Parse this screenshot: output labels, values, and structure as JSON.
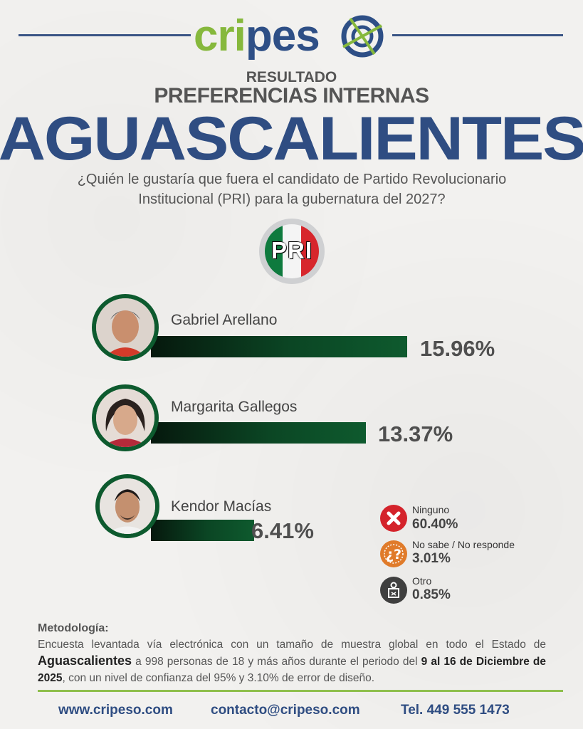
{
  "brand": {
    "logo_a": "cri",
    "logo_b": "pes",
    "logo_c": "o"
  },
  "header": {
    "resultado": "RESULTADO",
    "subtitle": "PREFERENCIAS INTERNAS",
    "state": "AGUASCALIENTES",
    "question": "¿Quién le gustaría que fuera el candidato de Partido Revolucionario Institucional (PRI) para la gubernatura del 2027?"
  },
  "party": {
    "letters": "PRI",
    "colors": [
      "#0e7a3e",
      "#f4f4f4",
      "#d7262c"
    ]
  },
  "chart_data": {
    "type": "bar",
    "categories": [
      "Gabriel Arellano",
      "Margarita Gallegos",
      "Kendor Macías"
    ],
    "values": [
      15.96,
      13.37,
      6.41
    ],
    "labels": [
      "15.96%",
      "13.37%",
      "6.41%"
    ],
    "unit": "%",
    "bar_color": "#0e5a2e",
    "other": [
      {
        "label": "Ninguno",
        "value": 60.4,
        "display": "60.40%",
        "icon": "x-icon",
        "color": "#d4232b"
      },
      {
        "label": "No sabe / No responde",
        "value": 3.01,
        "display": "3.01%",
        "icon": "question-icon",
        "color": "#e07b2a"
      },
      {
        "label": "Otro",
        "value": 0.85,
        "display": "0.85%",
        "icon": "ballot-box-icon",
        "color": "#3f3f3f"
      }
    ]
  },
  "methodology": {
    "title": "Metodología:",
    "p1": "Encuesta levantada vía electrónica con un tamaño de muestra global en todo el Estado de",
    "state": "Aguascalientes",
    "p2": " a 998 personas de 18 y más años durante el periodo del ",
    "period": "9 al 16 de Diciembre de 2025",
    "p3": ", con un nivel de confianza del 95% y 3.10% de error de diseño."
  },
  "footer": {
    "web": "www.cripeso.com",
    "email": "contacto@cripeso.com",
    "phone": "Tel. 449 555 1473"
  }
}
